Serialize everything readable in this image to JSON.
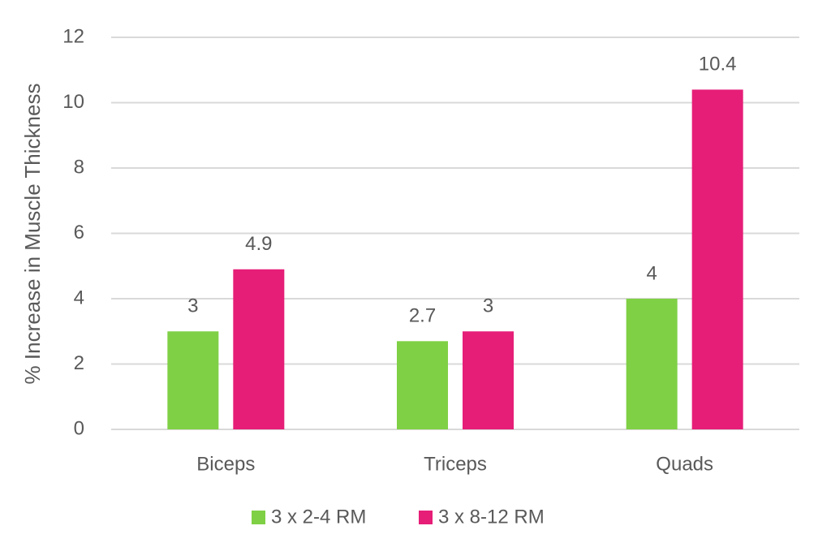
{
  "chart_data": {
    "type": "bar",
    "y_label": "% Increase in Muscle Thickness",
    "categories": [
      "Biceps",
      "Triceps",
      "Quads"
    ],
    "series": [
      {
        "name": "3 x 2-4 RM",
        "color": "#7fd045",
        "values": [
          3,
          2.7,
          4
        ]
      },
      {
        "name": "3 x 8-12 RM",
        "color": "#e61e78",
        "values": [
          4.9,
          3,
          10.4
        ]
      }
    ],
    "ylim": [
      0,
      12
    ],
    "yticks": [
      0,
      2,
      4,
      6,
      8,
      10,
      12
    ],
    "grid": true,
    "legend": "bottom"
  }
}
